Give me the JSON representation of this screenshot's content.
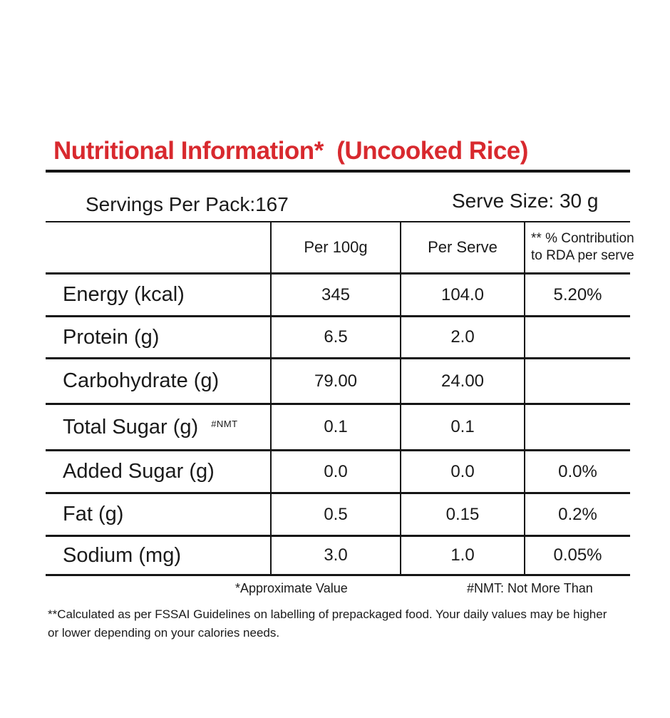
{
  "colors": {
    "title_red": "#d8292e",
    "rule_black": "#151515",
    "text": "#1a1a1a"
  },
  "title": "Nutritional Information*  (Uncooked Rice)",
  "pack_info": {
    "servings": "Servings Per Pack:167",
    "serve_size": "Serve Size: 30 g"
  },
  "table": {
    "header": {
      "col1": "",
      "col2": "Per 100g",
      "col3": "Per Serve",
      "col4_line1": "** % Contribution",
      "col4_line2": "to RDA per serve"
    },
    "rows": [
      {
        "label": "Energy (kcal)",
        "note": "",
        "per100": "345",
        "perserve": "104.0",
        "rda": "5.20%"
      },
      {
        "label": "Protein (g)",
        "note": "",
        "per100": "6.5",
        "perserve": "2.0",
        "rda": ""
      },
      {
        "label": "Carbohydrate (g)",
        "note": "",
        "per100": "79.00",
        "perserve": "24.00",
        "rda": ""
      },
      {
        "label": "Total Sugar (g)",
        "note": "#NMT",
        "per100": "0.1",
        "perserve": "0.1",
        "rda": ""
      },
      {
        "label": "Added Sugar (g)",
        "note": "",
        "per100": "0.0",
        "perserve": "0.0",
        "rda": "0.0%"
      },
      {
        "label": "Fat (g)",
        "note": "",
        "per100": "0.5",
        "perserve": "0.15",
        "rda": "0.2%"
      },
      {
        "label": "Sodium (mg)",
        "note": "",
        "per100": "3.0",
        "perserve": "1.0",
        "rda": "0.05%"
      }
    ]
  },
  "footnotes": {
    "approx": "*Approximate Value",
    "nmt": "#NMT: Not More Than",
    "line1": "**Calculated as per FSSAI Guidelines on labelling of prepackaged food. Your daily values may be higher",
    "line2": "or lower depending on your calories needs."
  }
}
